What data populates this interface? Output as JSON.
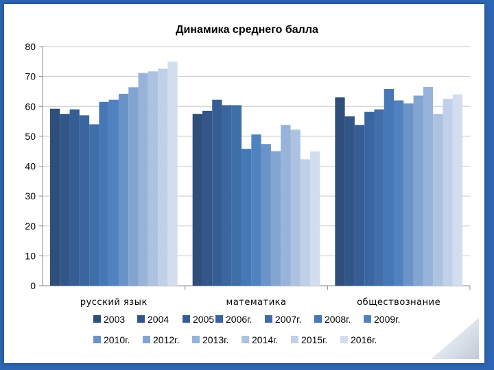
{
  "chart_data": {
    "type": "bar",
    "title": "Динамика среднего балла",
    "categories": [
      "русский язык",
      "математика",
      "обществознание"
    ],
    "ylim": [
      0,
      80
    ],
    "yticks": [
      0,
      10,
      20,
      30,
      40,
      50,
      60,
      70,
      80
    ],
    "grid": true,
    "legend_position": "bottom",
    "series": [
      {
        "name": "2003",
        "color": "#2f4e7a",
        "values": [
          59.2,
          57.5,
          63.0
        ]
      },
      {
        "name": "2004",
        "color": "#33568a",
        "values": [
          57.5,
          58.5,
          56.7
        ]
      },
      {
        "name": "2005",
        "color": "#365e94",
        "values": [
          59.0,
          62.2,
          53.8
        ]
      },
      {
        "name": "2006г.",
        "color": "#3a659e",
        "values": [
          57.0,
          60.4,
          58.2
        ]
      },
      {
        "name": "2007г.",
        "color": "#3f6ea9",
        "values": [
          54.0,
          60.4,
          59.0
        ]
      },
      {
        "name": "2008г.",
        "color": "#4677b6",
        "values": [
          61.5,
          45.8,
          65.8
        ]
      },
      {
        "name": "2009г.",
        "color": "#5082c0",
        "values": [
          62.2,
          50.6,
          62.0
        ]
      },
      {
        "name": "2010г.",
        "color": "#6a93c7",
        "values": [
          64.2,
          47.4,
          61.0
        ]
      },
      {
        "name": "2012г.",
        "color": "#82a4d0",
        "values": [
          66.4,
          45.0,
          63.6
        ]
      },
      {
        "name": "2013г.",
        "color": "#98b3d9",
        "values": [
          71.2,
          53.8,
          66.5
        ]
      },
      {
        "name": "2014г.",
        "color": "#adc2e1",
        "values": [
          71.7,
          52.2,
          57.5
        ]
      },
      {
        "name": "2015г.",
        "color": "#c0d0e8",
        "values": [
          72.6,
          42.3,
          62.5
        ]
      },
      {
        "name": "2016г.",
        "color": "#d2ddef",
        "values": [
          75.0,
          44.9,
          64.0
        ]
      }
    ]
  }
}
